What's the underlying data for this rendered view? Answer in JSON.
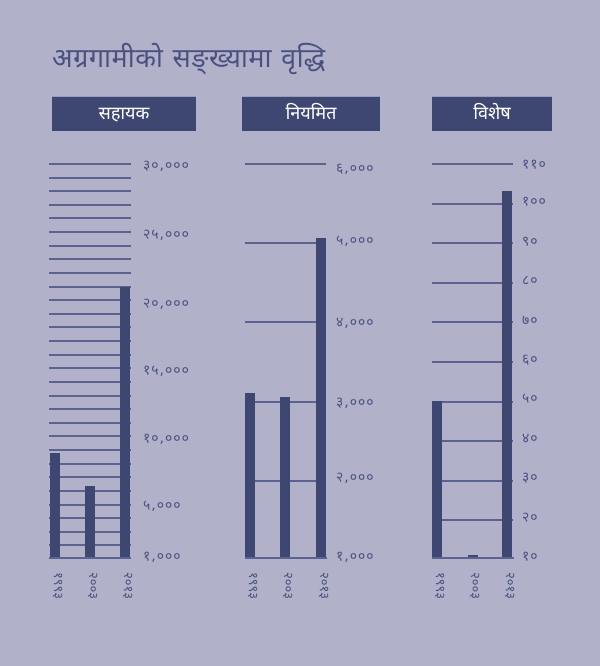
{
  "title": "अग्रगामीको सङ्ख्यामा वृद्धि",
  "colors": {
    "background": "#b1b2c9",
    "bar": "#3e4672",
    "header_bg": "#3e4672",
    "header_text": "#ffffff",
    "gridline": "#5c6390",
    "text": "#4a5180"
  },
  "panels": [
    {
      "header": "सहायक",
      "x_labels": [
        "१९९३",
        "२००३",
        "२०१३"
      ],
      "y_tick_labels": [
        "३०,०००",
        "२५,०००",
        "२०,०००",
        "१५,०००",
        "१०,०००",
        "५,०००",
        "१,०००"
      ]
    },
    {
      "header": "नियमित",
      "x_labels": [
        "१९९३",
        "२००३",
        "२०१३"
      ],
      "y_tick_labels": [
        "६,०००",
        "५,०००",
        "४,०००",
        "३,०००",
        "२,०००",
        "१,०००"
      ]
    },
    {
      "header": "विशेष",
      "x_labels": [
        "१९९३",
        "२००३",
        "२०१३"
      ],
      "y_tick_labels": [
        "११०",
        "१००",
        "९०",
        "८०",
        "७०",
        "६०",
        "५०",
        "४०",
        "३०",
        "२०",
        "१०"
      ]
    }
  ],
  "chart_data": [
    {
      "type": "bar",
      "title": "सहायक",
      "categories": [
        "1993",
        "2003",
        "2013"
      ],
      "values": [
        8700,
        6300,
        20900
      ],
      "ylim": [
        1000,
        30000
      ],
      "yticks": [
        1000,
        5000,
        10000,
        15000,
        20000,
        25000,
        30000
      ],
      "grid_step": 1000,
      "grid": true,
      "xlabel": "",
      "ylabel": ""
    },
    {
      "type": "bar",
      "title": "नियमित",
      "categories": [
        "1993",
        "2003",
        "2013"
      ],
      "values": [
        3100,
        3050,
        5050
      ],
      "ylim": [
        1000,
        6000
      ],
      "yticks": [
        1000,
        2000,
        3000,
        4000,
        5000,
        6000
      ],
      "grid_step": 1000,
      "grid": true,
      "xlabel": "",
      "ylabel": ""
    },
    {
      "type": "bar",
      "title": "विशेष",
      "categories": [
        "1993",
        "2003",
        "2013"
      ],
      "values": [
        50,
        11,
        103
      ],
      "ylim": [
        10,
        110
      ],
      "yticks": [
        10,
        20,
        30,
        40,
        50,
        60,
        70,
        80,
        90,
        100,
        110
      ],
      "grid_step": 10,
      "grid": true,
      "xlabel": "",
      "ylabel": ""
    }
  ]
}
